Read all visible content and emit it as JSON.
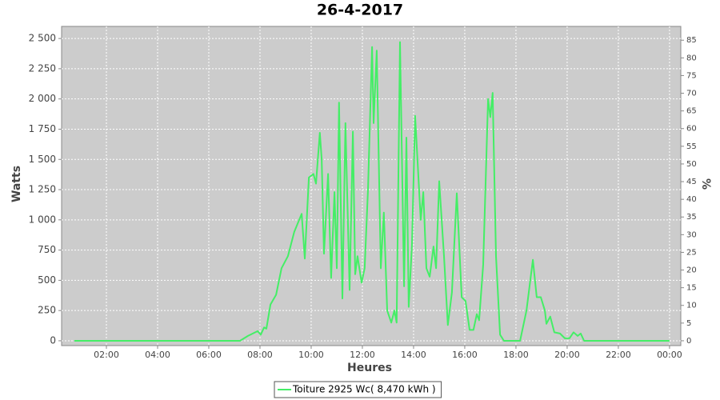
{
  "chart_data": {
    "type": "line",
    "title": "26-4-2017",
    "x_label": "Heures",
    "y_label": "Watts",
    "y2_label": "%",
    "grid": true,
    "background": "#cccccc",
    "xlim": [
      0.25,
      24.44
    ],
    "ylim": [
      -40,
      2600
    ],
    "y2lim": [
      -1.37,
      88.9
    ],
    "xticks": [
      {
        "value": 2,
        "label": "02:00"
      },
      {
        "value": 4,
        "label": "04:00"
      },
      {
        "value": 6,
        "label": "06:00"
      },
      {
        "value": 8,
        "label": "08:00"
      },
      {
        "value": 10,
        "label": "10:00"
      },
      {
        "value": 12,
        "label": "12:00"
      },
      {
        "value": 14,
        "label": "14:00"
      },
      {
        "value": 16,
        "label": "16:00"
      },
      {
        "value": 18,
        "label": "18:00"
      },
      {
        "value": 20,
        "label": "20:00"
      },
      {
        "value": 22,
        "label": "22:00"
      },
      {
        "value": 24,
        "label": "00:00"
      }
    ],
    "yticks": [
      0,
      250,
      500,
      750,
      {
        "value": 1000,
        "label": "1 000"
      },
      {
        "value": 1250,
        "label": "1 250"
      },
      {
        "value": 1500,
        "label": "1 500"
      },
      {
        "value": 1750,
        "label": "1 750"
      },
      {
        "value": 2000,
        "label": "2 000"
      },
      {
        "value": 2250,
        "label": "2 250"
      },
      {
        "value": 2500,
        "label": "2 500"
      }
    ],
    "y2ticks": [
      0,
      5,
      10,
      15,
      20,
      25,
      30,
      35,
      40,
      45,
      50,
      55,
      60,
      65,
      70,
      75,
      80,
      85
    ],
    "x": [
      0.75,
      7.22,
      7.53,
      7.91,
      8.03,
      8.16,
      8.25,
      8.41,
      8.63,
      8.84,
      9.09,
      9.34,
      9.63,
      9.75,
      9.91,
      10.09,
      10.19,
      10.34,
      10.41,
      10.5,
      10.66,
      10.78,
      10.91,
      11.0,
      11.09,
      11.22,
      11.34,
      11.5,
      11.63,
      11.72,
      11.81,
      11.97,
      12.09,
      12.22,
      12.38,
      12.44,
      12.56,
      12.72,
      12.84,
      12.97,
      13.13,
      13.25,
      13.34,
      13.47,
      13.63,
      13.72,
      13.81,
      13.94,
      14.06,
      14.28,
      14.38,
      14.5,
      14.63,
      14.78,
      14.88,
      15.0,
      15.19,
      15.34,
      15.5,
      15.69,
      15.88,
      16.03,
      16.19,
      16.34,
      16.47,
      16.56,
      16.72,
      16.91,
      17.0,
      17.09,
      17.22,
      17.38,
      17.53,
      18.16,
      18.41,
      18.66,
      18.81,
      18.97,
      19.13,
      19.19,
      19.34,
      19.5,
      19.72,
      19.91,
      20.09,
      20.25,
      20.41,
      20.53,
      20.66,
      24.0
    ],
    "series": [
      {
        "name": "Toiture 2925 Wc( 8,470 kWh )",
        "color": "#44ee66",
        "values": [
          0,
          0,
          40,
          80,
          50,
          110,
          100,
          300,
          380,
          600,
          700,
          900,
          1050,
          680,
          1350,
          1380,
          1300,
          1720,
          1500,
          720,
          1380,
          520,
          1230,
          600,
          1970,
          350,
          1800,
          420,
          1730,
          550,
          700,
          480,
          600,
          1250,
          2430,
          1800,
          2400,
          600,
          1060,
          250,
          150,
          250,
          150,
          2470,
          450,
          1680,
          280,
          800,
          1860,
          1000,
          1230,
          600,
          530,
          780,
          600,
          1320,
          700,
          130,
          400,
          1220,
          360,
          330,
          90,
          90,
          220,
          170,
          630,
          2000,
          1850,
          2050,
          700,
          50,
          0,
          0,
          250,
          670,
          360,
          360,
          250,
          140,
          200,
          70,
          60,
          20,
          20,
          70,
          40,
          60,
          0,
          0
        ]
      }
    ]
  }
}
